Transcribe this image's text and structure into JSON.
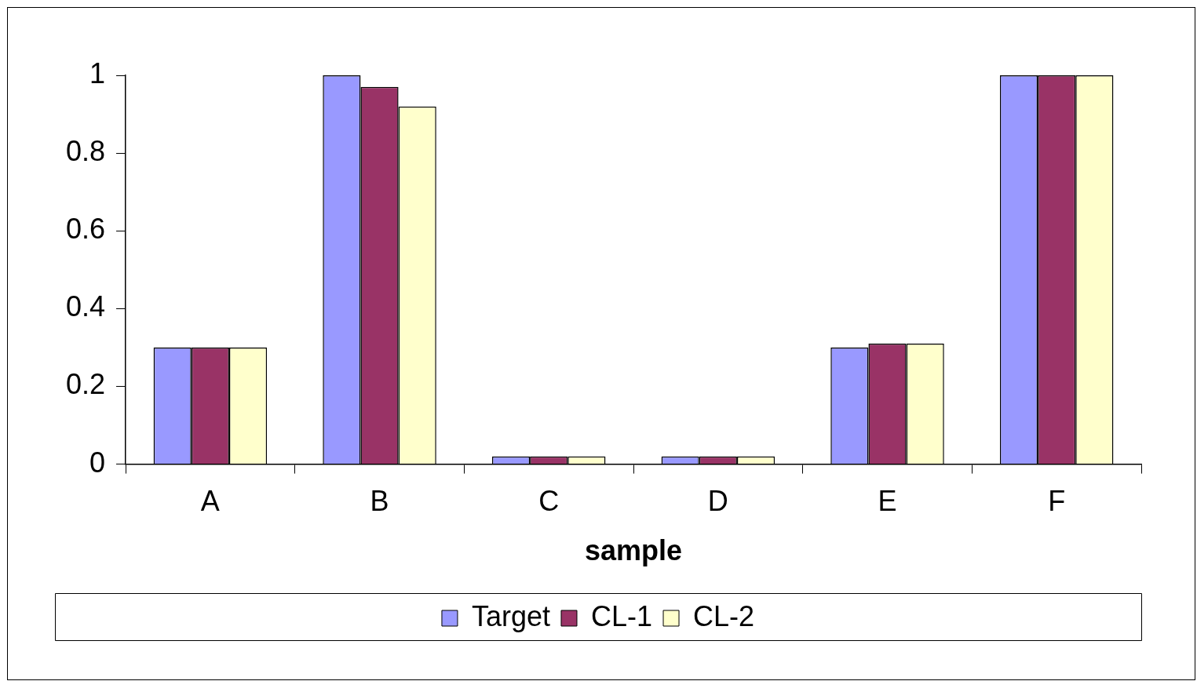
{
  "chart_data": {
    "type": "bar",
    "xlabel": "sample",
    "categories": [
      "A",
      "B",
      "C",
      "D",
      "E",
      "F"
    ],
    "series": [
      {
        "name": "Target",
        "color": "#9999ff",
        "values": [
          0.3,
          1,
          0.02,
          0.02,
          0.3,
          1
        ]
      },
      {
        "name": "CL-1",
        "color": "#993366",
        "values": [
          0.3,
          0.97,
          0.02,
          0.02,
          0.31,
          1
        ]
      },
      {
        "name": "CL-2",
        "color": "#ffffcc",
        "values": [
          0.3,
          0.92,
          0.02,
          0.02,
          0.31,
          1
        ]
      }
    ],
    "ylim": [
      0,
      1
    ],
    "yticks": [
      0,
      0.2,
      0.4,
      0.6,
      0.8,
      1
    ],
    "grid": false,
    "legend": "bottom"
  }
}
